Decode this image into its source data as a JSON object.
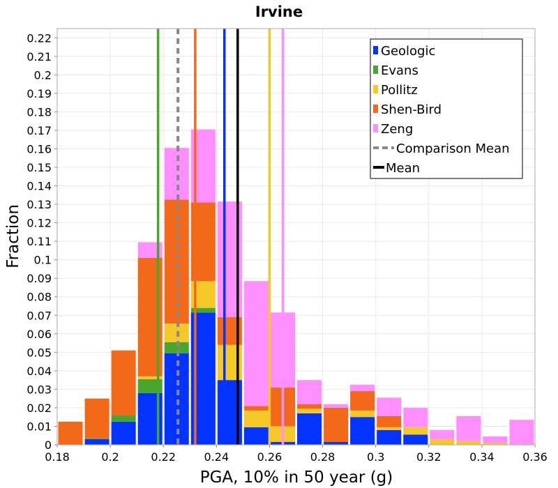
{
  "chart_data": {
    "type": "bar",
    "stacked": true,
    "title": "Irvine",
    "xlabel": "PGA, 10% in 50 year (g)",
    "ylabel": "Fraction",
    "xlim": [
      0.18,
      0.36
    ],
    "ylim": [
      0,
      0.225
    ],
    "bin_width": 0.01,
    "x_ticks": [
      0.18,
      0.2,
      0.22,
      0.24,
      0.26,
      0.28,
      0.3,
      0.32,
      0.34,
      0.36
    ],
    "x_tick_labels": [
      "0.18",
      "0.2",
      "0.22",
      "0.24",
      "0.26",
      "0.28",
      "0.3",
      "0.32",
      "0.34",
      "0.36"
    ],
    "y_ticks": [
      0,
      0.01,
      0.02,
      0.03,
      0.04,
      0.05,
      0.06,
      0.07,
      0.08,
      0.09,
      0.1,
      0.11,
      0.12,
      0.13,
      0.14,
      0.15,
      0.16,
      0.17,
      0.18,
      0.19,
      0.2,
      0.21,
      0.22
    ],
    "y_tick_labels": [
      "0",
      "0.01",
      "0.02",
      "0.03",
      "0.04",
      "0.05",
      "0.06",
      "0.07",
      "0.08",
      "0.09",
      "0.1",
      "0.11",
      "0.12",
      "0.13",
      "0.14",
      "0.15",
      "0.16",
      "0.17",
      "0.18",
      "0.19",
      "0.2",
      "0.21",
      "0.22"
    ],
    "grid": true,
    "legend_position": "top-right",
    "bin_centers": [
      0.185,
      0.195,
      0.205,
      0.215,
      0.225,
      0.235,
      0.245,
      0.255,
      0.265,
      0.275,
      0.285,
      0.295,
      0.305,
      0.315,
      0.325,
      0.335,
      0.345,
      0.355
    ],
    "series": [
      {
        "name": "Geologic",
        "color": "#0433ff",
        "values": [
          0.0,
          0.003,
          0.0125,
          0.028,
          0.0495,
          0.0715,
          0.035,
          0.0095,
          0.0015,
          0.017,
          0.0015,
          0.015,
          0.008,
          0.0055,
          0.0,
          0.0,
          0.0,
          0.0
        ]
      },
      {
        "name": "Evans",
        "color": "#4aa52e",
        "values": [
          0.0,
          0.0005,
          0.0035,
          0.0075,
          0.006,
          0.0025,
          0.0,
          0.0,
          0.0,
          0.0,
          0.0,
          0.0,
          0.0,
          0.0,
          0.0,
          0.0,
          0.0,
          0.0
        ]
      },
      {
        "name": "Pollitz",
        "color": "#f5c82a",
        "values": [
          0.0,
          0.0,
          0.0,
          0.0015,
          0.01,
          0.0145,
          0.019,
          0.009,
          0.0085,
          0.0025,
          0.0,
          0.0035,
          0.0015,
          0.004,
          0.003,
          0.002,
          0.001,
          0.0
        ]
      },
      {
        "name": "Shen-Bird",
        "color": "#f26a19",
        "values": [
          0.0125,
          0.0215,
          0.035,
          0.064,
          0.067,
          0.0425,
          0.015,
          0.0025,
          0.021,
          0.0025,
          0.0185,
          0.0105,
          0.006,
          0.0,
          0.0,
          0.0,
          0.0,
          0.0
        ]
      },
      {
        "name": "Zeng",
        "color": "#ff8fff",
        "values": [
          0.0,
          0.0,
          0.0,
          0.0085,
          0.028,
          0.0395,
          0.0625,
          0.0675,
          0.0405,
          0.013,
          0.002,
          0.0035,
          0.01,
          0.0105,
          0.005,
          0.0135,
          0.0035,
          0.0135
        ]
      }
    ],
    "vertical_lines": [
      {
        "name": "Geologic",
        "x": 0.243,
        "color": "#0433ff",
        "style": "solid"
      },
      {
        "name": "Evans",
        "x": 0.218,
        "color": "#4aa52e",
        "style": "solid"
      },
      {
        "name": "Pollitz",
        "x": 0.26,
        "color": "#f5c82a",
        "style": "solid"
      },
      {
        "name": "Shen-Bird",
        "x": 0.232,
        "color": "#f26a19",
        "style": "solid"
      },
      {
        "name": "Zeng",
        "x": 0.265,
        "color": "#ff8fff",
        "style": "solid"
      },
      {
        "name": "Comparison Mean",
        "x": 0.2255,
        "color": "#888888",
        "style": "dashed"
      },
      {
        "name": "Mean",
        "x": 0.248,
        "color": "#000000",
        "style": "solid"
      }
    ],
    "legend": [
      {
        "label": "Geologic",
        "color": "#0433ff",
        "kind": "box"
      },
      {
        "label": "Evans",
        "color": "#4aa52e",
        "kind": "box"
      },
      {
        "label": "Pollitz",
        "color": "#f5c82a",
        "kind": "box"
      },
      {
        "label": "Shen-Bird",
        "color": "#f26a19",
        "kind": "box"
      },
      {
        "label": "Zeng",
        "color": "#ff8fff",
        "kind": "box"
      },
      {
        "label": "Comparison Mean",
        "color": "#888888",
        "kind": "dashed-line"
      },
      {
        "label": "Mean",
        "color": "#000000",
        "kind": "line"
      }
    ]
  }
}
